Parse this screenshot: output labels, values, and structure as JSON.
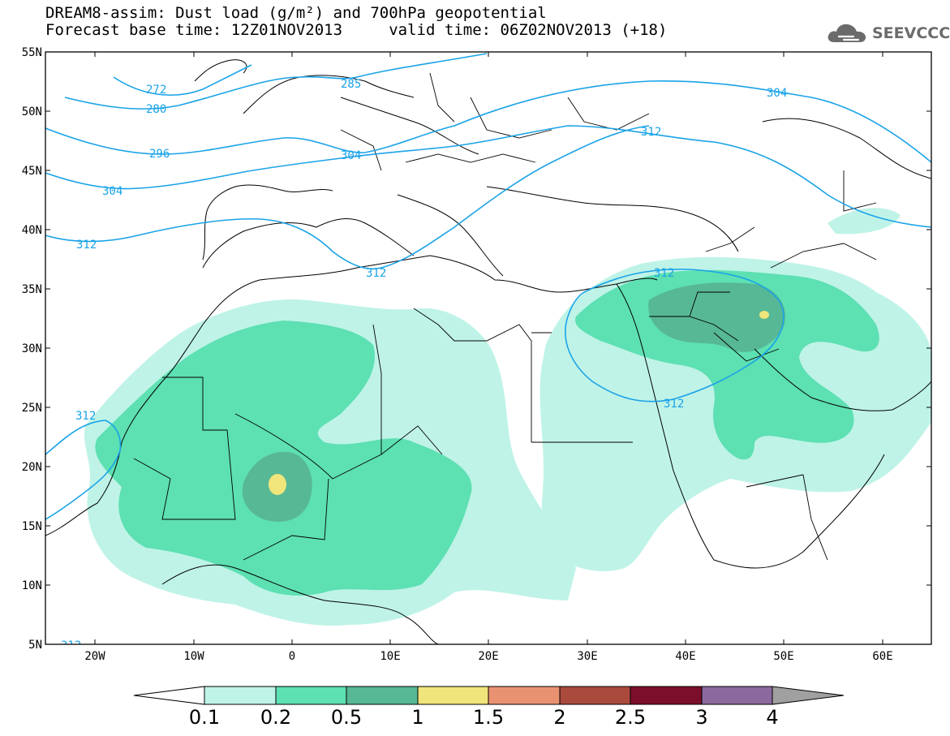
{
  "header": {
    "title_line1": "DREAM8-assim: Dust load (g/m²) and 700hPa geopotential",
    "title_line2": "Forecast base time: 12Z01NOV2013     valid time: 06Z02NOV2013 (+18)",
    "logo_text": "SEEVCCC"
  },
  "map": {
    "lat_ticks": [
      "55N",
      "50N",
      "45N",
      "40N",
      "35N",
      "30N",
      "25N",
      "20N",
      "15N",
      "10N",
      "5N"
    ],
    "lon_ticks": [
      "20W",
      "10W",
      "0",
      "10E",
      "20E",
      "30E",
      "40E",
      "50E",
      "60E"
    ],
    "contour_labels": [
      "272",
      "280",
      "285",
      "296",
      "304",
      "304",
      "304",
      "312",
      "312",
      "312",
      "312",
      "312",
      "312",
      "312"
    ]
  },
  "colorbar": {
    "labels": [
      "0.1",
      "0.2",
      "0.5",
      "1",
      "1.5",
      "2",
      "2.5",
      "3",
      "4"
    ],
    "colors": [
      "#ffffff",
      "#bff3e7",
      "#5de0b2",
      "#57b895",
      "#f0e57a",
      "#e99272",
      "#a94a3c",
      "#7b0f2b",
      "#8c6a9f",
      "#a0a0a0"
    ]
  },
  "colors": {
    "contour": "#1aa3e8",
    "dust_0_1": "#bff3e7",
    "dust_0_2": "#5de0b2",
    "dust_0_5": "#57b895",
    "dust_1": "#f0e57a"
  }
}
